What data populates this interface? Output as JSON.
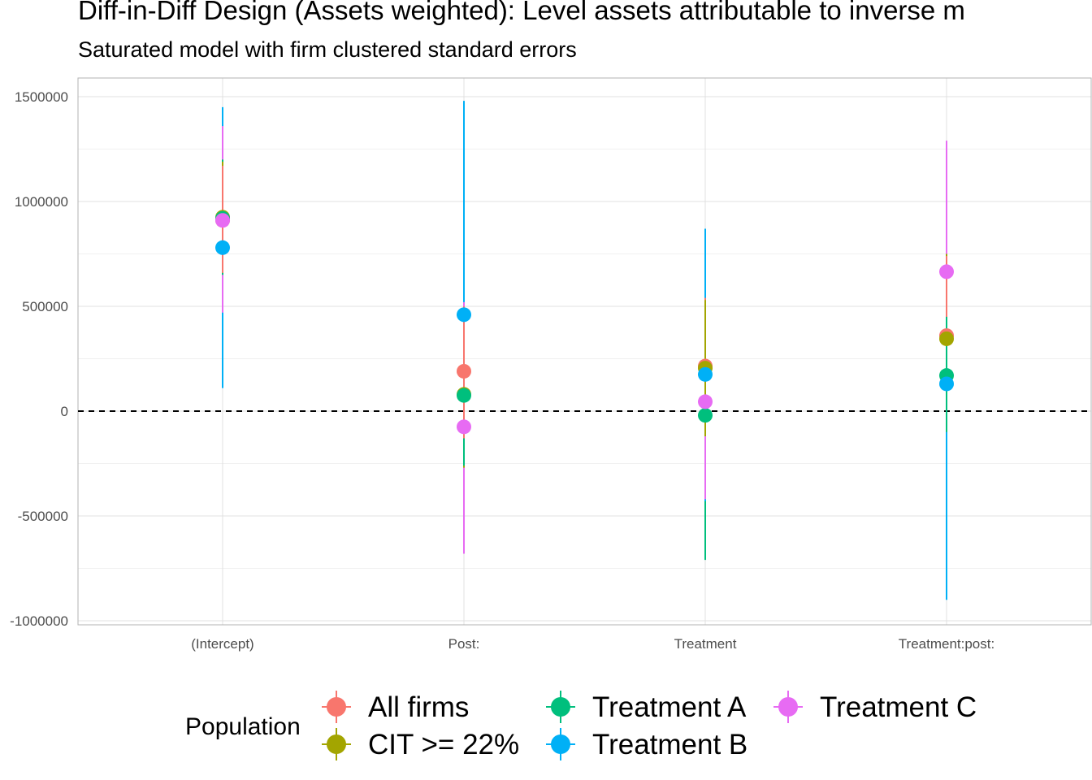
{
  "chart_data": {
    "type": "scatter",
    "title": "Diff-in-Diff Design (Assets weighted): Level assets attributable to inverse m",
    "subtitle": "Saturated model with firm clustered standard errors",
    "xlabel": "",
    "ylabel": "",
    "categories": [
      "(Intercept)",
      "Post:",
      "Treatment",
      "Treatment:post:"
    ],
    "ylim": [
      -1000000,
      1500000
    ],
    "yticks": [
      -1000000,
      -500000,
      0,
      500000,
      1000000,
      1500000
    ],
    "ytick_labels": [
      "-1000000",
      "-500000",
      "0",
      "500000",
      "1000000",
      "1500000"
    ],
    "reference_line": {
      "y": 0,
      "style": "dashed",
      "color": "#000000"
    },
    "grid": true,
    "legend": {
      "title": "Population",
      "position": "bottom"
    },
    "series": [
      {
        "name": "All firms",
        "color": "#F8766D",
        "values": [
          910000,
          190000,
          215000,
          360000
        ],
        "lower": [
          660000,
          -130000,
          -120000,
          -30000
        ],
        "upper": [
          1170000,
          500000,
          540000,
          740000
        ]
      },
      {
        "name": "CIT >= 22%",
        "color": "#A3A500",
        "values": [
          925000,
          80000,
          205000,
          345000
        ],
        "lower": [
          660000,
          -270000,
          -120000,
          -60000
        ],
        "upper": [
          1190000,
          430000,
          530000,
          750000
        ]
      },
      {
        "name": "Treatment A",
        "color": "#00BF7D",
        "values": [
          920000,
          75000,
          -20000,
          170000
        ],
        "lower": [
          650000,
          -260000,
          -710000,
          -100000
        ],
        "upper": [
          1200000,
          420000,
          650000,
          450000
        ]
      },
      {
        "name": "Treatment B",
        "color": "#00B0F6",
        "values": [
          780000,
          460000,
          175000,
          130000
        ],
        "lower": [
          110000,
          -560000,
          -430000,
          -900000
        ],
        "upper": [
          1450000,
          1480000,
          870000,
          1160000
        ]
      },
      {
        "name": "Treatment C",
        "color": "#E76BF3",
        "values": [
          910000,
          -75000,
          45000,
          665000
        ],
        "lower": [
          470000,
          -680000,
          -420000,
          40000
        ],
        "upper": [
          1360000,
          520000,
          510000,
          1290000
        ]
      }
    ]
  }
}
